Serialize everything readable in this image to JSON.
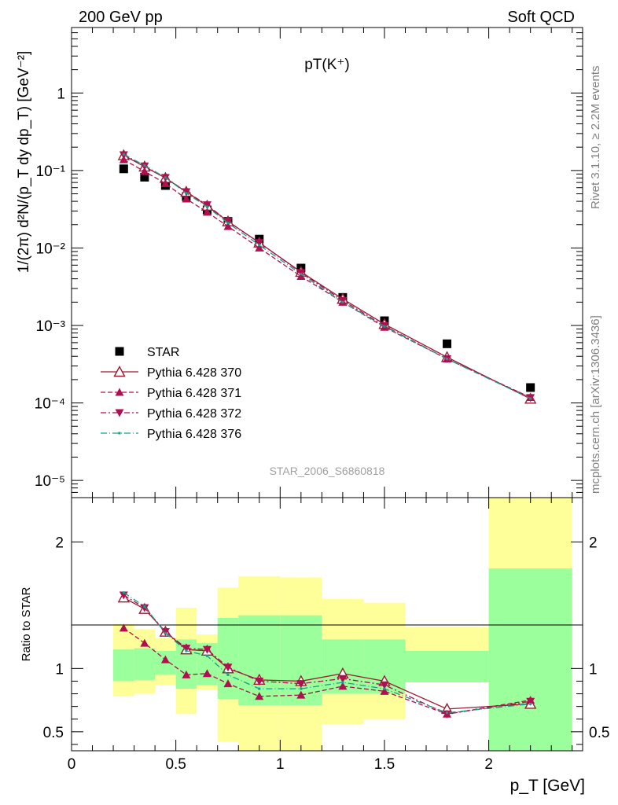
{
  "header": {
    "left": "200 GeV pp",
    "right": "Soft QCD"
  },
  "side": {
    "rivet": "Rivet 3.1.10, ≥ 2.2M events",
    "mcplots": "mcplots.cern.ch [arXiv:1306.3436]"
  },
  "colors": {
    "data": "#000000",
    "p370": "#9b1b30",
    "p371": "#b0104f",
    "p372": "#b0104f",
    "p376": "#15a08a",
    "band_inner": "#9bff9b",
    "band_outer": "#ffff99"
  },
  "chart_data": [
    {
      "type": "line",
      "title": "pT(K⁺)",
      "watermark": "STAR_2006_S6860818",
      "ylabel": "1/(2π) d²N/(p_T dy dp_T) [GeV⁻²]",
      "yscale": "log",
      "xlim": [
        0,
        2.45
      ],
      "ylim": [
        6e-06,
        7
      ],
      "y_ticks": [
        {
          "v": 1e-05,
          "label": "10⁻⁵"
        },
        {
          "v": 0.0001,
          "label": "10⁻⁴"
        },
        {
          "v": 0.001,
          "label": "10⁻³"
        },
        {
          "v": 0.01,
          "label": "10⁻²"
        },
        {
          "v": 0.1,
          "label": "10⁻¹"
        },
        {
          "v": 1,
          "label": "1"
        }
      ],
      "x": [
        0.25,
        0.35,
        0.45,
        0.55,
        0.65,
        0.75,
        0.9,
        1.1,
        1.3,
        1.5,
        1.8,
        2.2
      ],
      "legend_position": "bottom-left",
      "series": [
        {
          "name": "STAR",
          "marker": "square",
          "values": [
            0.105,
            0.082,
            0.064,
            0.046,
            0.031,
            0.022,
            0.013,
            0.0055,
            0.0023,
            0.00115,
            0.00058,
            0.000158
          ]
        },
        {
          "name": "Pythia 6.428 370",
          "marker": "open-triangle",
          "values": [
            0.157,
            0.112,
            0.08,
            0.053,
            0.035,
            0.022,
            0.0117,
            0.0049,
            0.0022,
            0.00104,
            0.00039,
            0.000113
          ]
        },
        {
          "name": "Pythia 6.428 371",
          "marker": "triangle",
          "values": [
            0.138,
            0.097,
            0.068,
            0.043,
            0.029,
            0.019,
            0.01,
            0.0043,
            0.002,
            0.00095,
            0.00037,
            0.000118
          ]
        },
        {
          "name": "Pythia 6.428 372",
          "marker": "inverted-triangle",
          "values": [
            0.159,
            0.114,
            0.081,
            0.053,
            0.036,
            0.022,
            0.0117,
            0.0048,
            0.0021,
            0.00099,
            0.00037,
            0.000117
          ]
        },
        {
          "name": "Pythia 6.428 376",
          "marker": "dot",
          "values": [
            0.162,
            0.116,
            0.081,
            0.051,
            0.034,
            0.021,
            0.0109,
            0.0046,
            0.002,
            0.00097,
            0.00037,
            0.000114
          ]
        }
      ]
    },
    {
      "type": "line",
      "ylabel": "Ratio to STAR",
      "xlabel": "p_T [GeV]",
      "xlim": [
        0,
        2.45
      ],
      "ylim": [
        0.35,
        2.35
      ],
      "x_ticks": [
        0,
        0.5,
        1,
        1.5,
        2
      ],
      "y_ticks": [
        0.5,
        1,
        2
      ],
      "x": [
        0.25,
        0.35,
        0.45,
        0.55,
        0.65,
        0.75,
        0.9,
        1.1,
        1.3,
        1.5,
        1.8,
        2.2
      ],
      "bands": [
        {
          "x0": 0.2,
          "x1": 0.3,
          "inner": [
            0.9,
            1.15
          ],
          "outer": [
            0.78,
            1.35
          ]
        },
        {
          "x0": 0.3,
          "x1": 0.4,
          "inner": [
            0.91,
            1.16
          ],
          "outer": [
            0.8,
            1.31
          ]
        },
        {
          "x0": 0.4,
          "x1": 0.5,
          "inner": [
            0.95,
            1.14
          ],
          "outer": [
            0.87,
            1.24
          ]
        },
        {
          "x0": 0.5,
          "x1": 0.6,
          "inner": [
            0.84,
            1.23
          ],
          "outer": [
            0.64,
            1.48
          ]
        },
        {
          "x0": 0.6,
          "x1": 0.7,
          "inner": [
            0.87,
            1.2
          ],
          "outer": [
            0.83,
            1.27
          ]
        },
        {
          "x0": 0.7,
          "x1": 0.8,
          "inner": [
            0.76,
            1.4
          ],
          "outer": [
            0.42,
            1.64
          ]
        },
        {
          "x0": 0.8,
          "x1": 1.0,
          "inner": [
            0.71,
            1.42
          ],
          "outer": [
            0.35,
            1.73
          ]
        },
        {
          "x0": 1.0,
          "x1": 1.2,
          "inner": [
            0.71,
            1.42
          ],
          "outer": [
            0.35,
            1.72
          ]
        },
        {
          "x0": 1.2,
          "x1": 1.4,
          "inner": [
            0.8,
            1.23
          ],
          "outer": [
            0.56,
            1.55
          ]
        },
        {
          "x0": 1.4,
          "x1": 1.6,
          "inner": [
            0.8,
            1.23
          ],
          "outer": [
            0.6,
            1.52
          ]
        },
        {
          "x0": 1.6,
          "x1": 2.0,
          "inner": [
            0.89,
            1.14
          ],
          "outer": [
            0.89,
            1.33
          ]
        },
        {
          "x0": 2.0,
          "x1": 2.4,
          "inner": [
            0.35,
            1.79
          ],
          "outer": [
            0.35,
            2.35
          ]
        }
      ],
      "series": [
        {
          "name": "Pythia 6.428 370",
          "marker": "open-triangle",
          "values": [
            1.56,
            1.47,
            1.29,
            1.15,
            1.14,
            1.0,
            0.91,
            0.9,
            0.96,
            0.9,
            0.68,
            0.72
          ]
        },
        {
          "name": "Pythia 6.428 371",
          "marker": "triangle",
          "values": [
            1.32,
            1.2,
            1.07,
            0.95,
            0.96,
            0.88,
            0.78,
            0.79,
            0.86,
            0.82,
            0.64,
            0.75
          ]
        },
        {
          "name": "Pythia 6.428 372",
          "marker": "inverted-triangle",
          "values": [
            1.58,
            1.48,
            1.29,
            1.16,
            1.15,
            1.01,
            0.9,
            0.88,
            0.92,
            0.87,
            0.64,
            0.74
          ]
        },
        {
          "name": "Pythia 6.428 376",
          "marker": "dot",
          "values": [
            1.6,
            1.49,
            1.28,
            1.14,
            1.1,
            0.95,
            0.84,
            0.84,
            0.89,
            0.84,
            0.65,
            0.72
          ]
        }
      ]
    }
  ]
}
